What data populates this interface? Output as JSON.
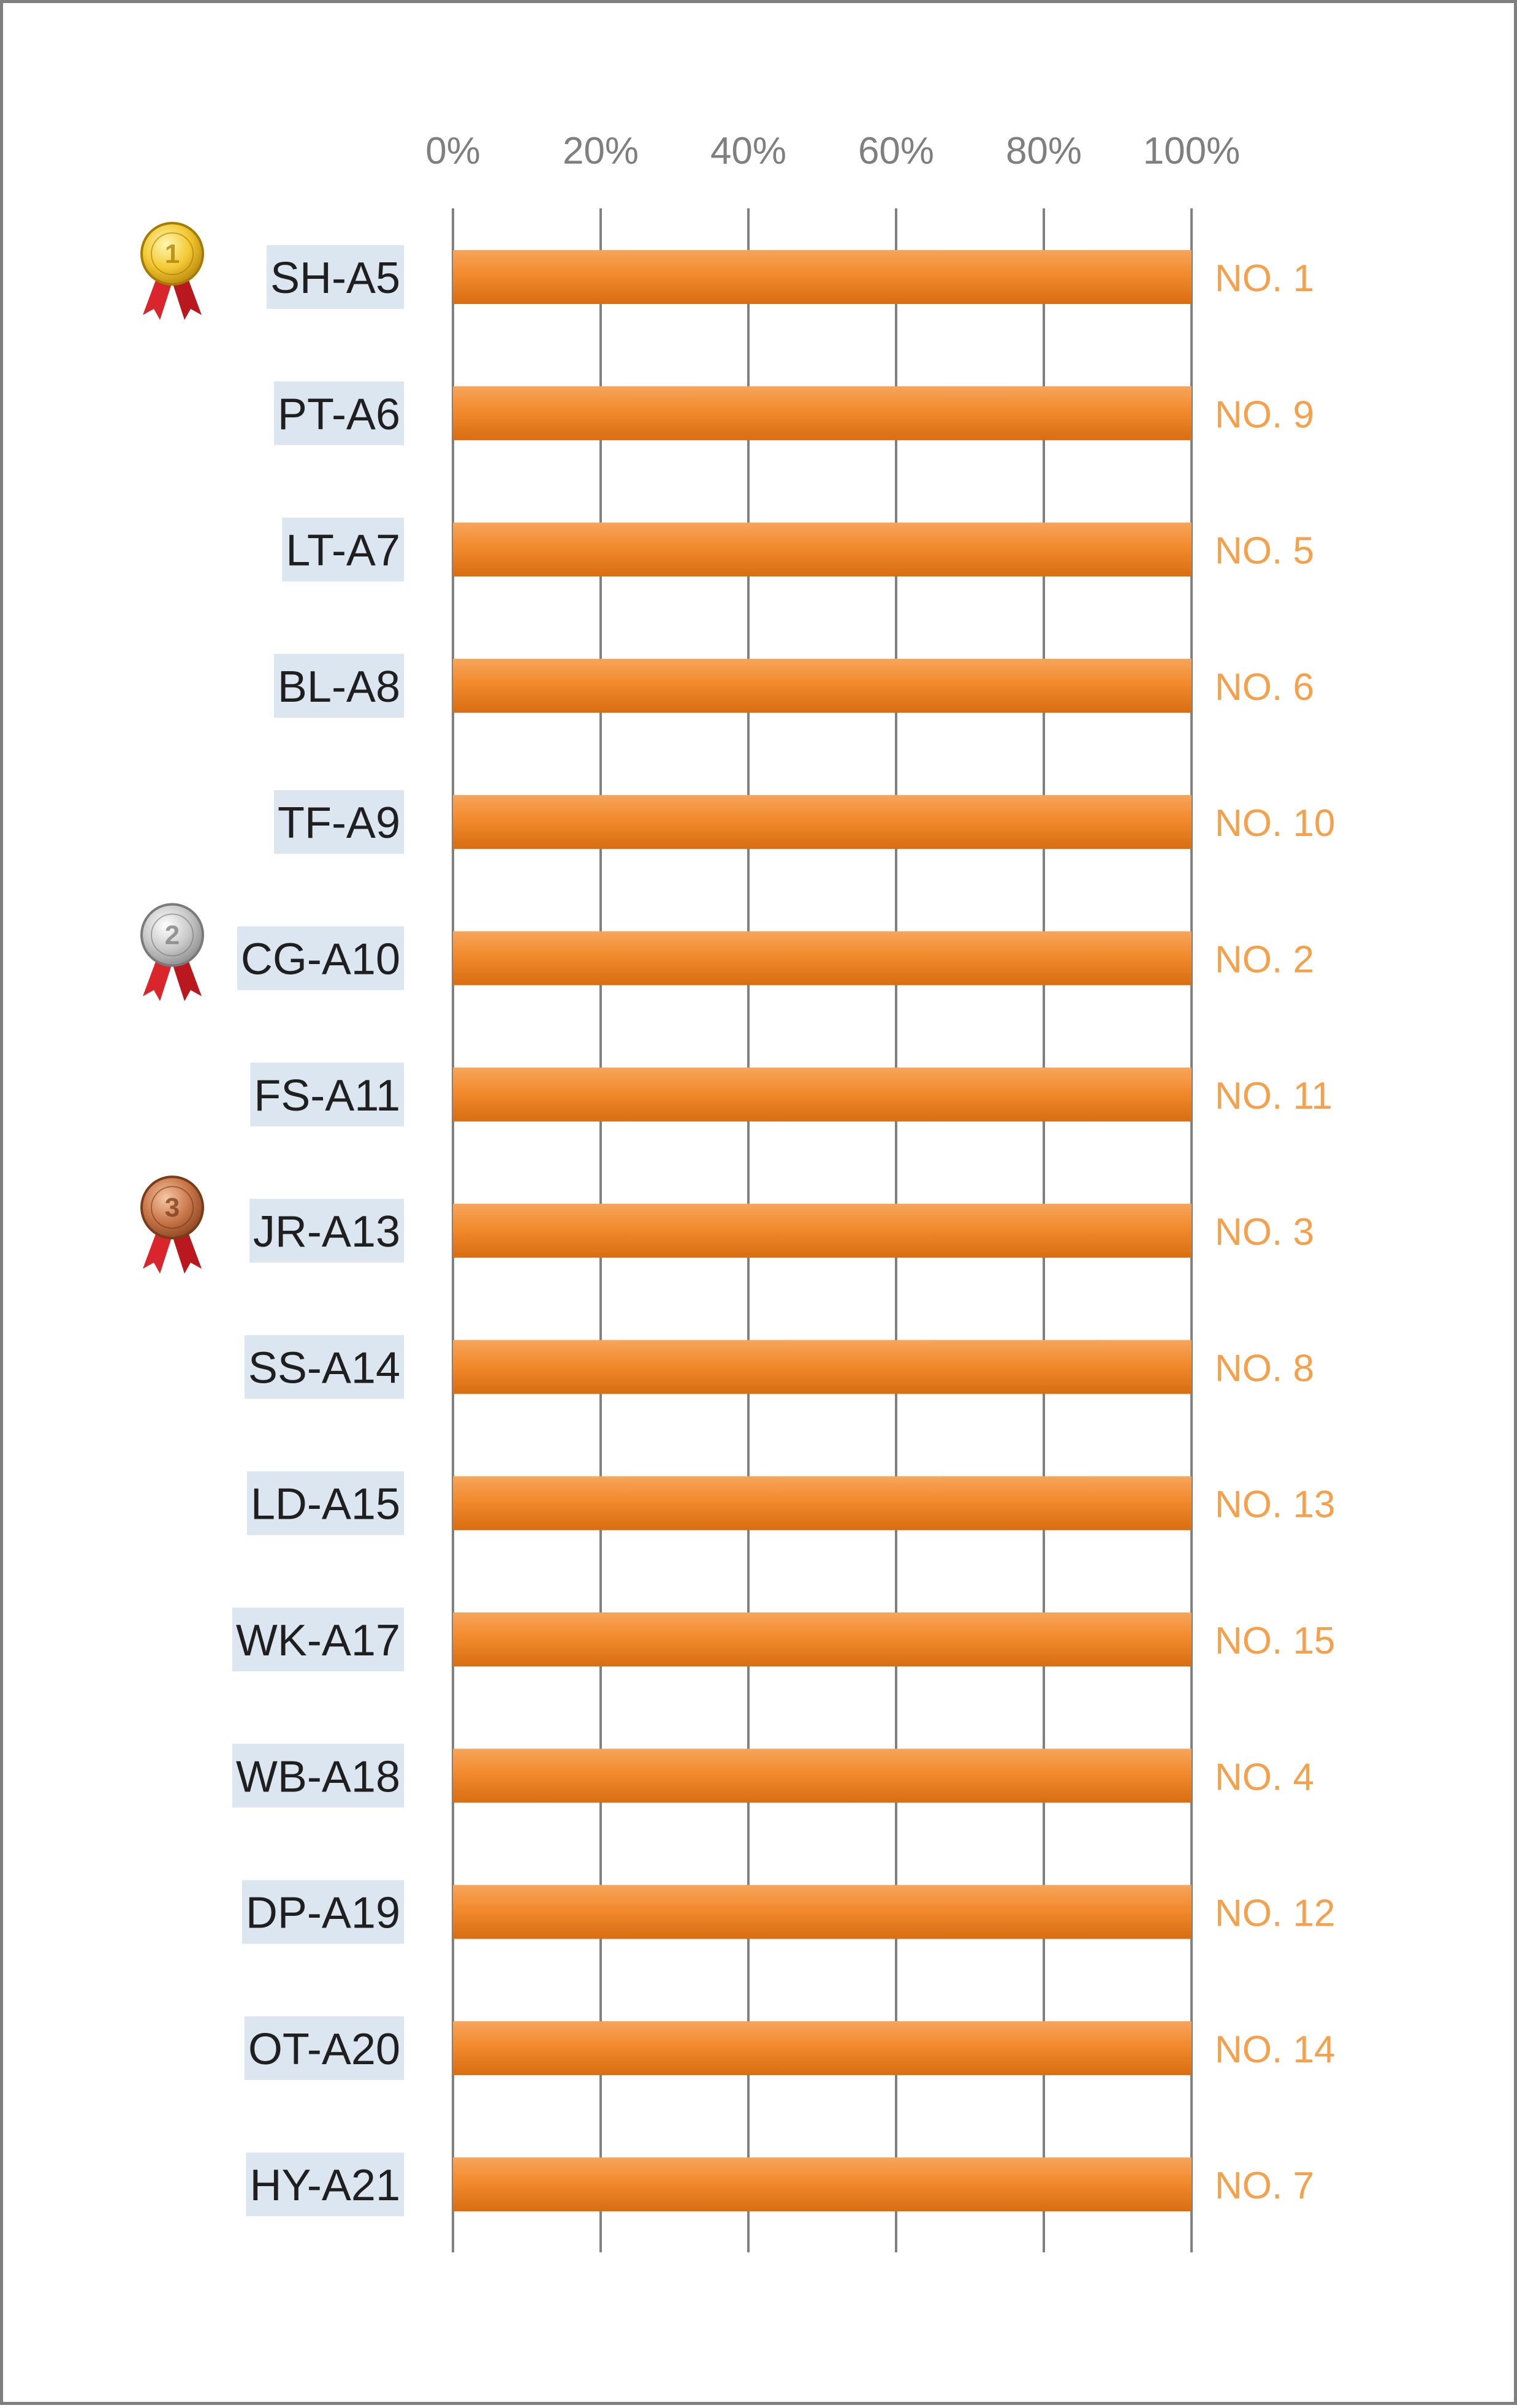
{
  "chart_data": {
    "type": "bar",
    "orientation": "horizontal",
    "categories": [
      "SH-A5",
      "PT-A6",
      "LT-A7",
      "BL-A8",
      "TF-A9",
      "CG-A10",
      "FS-A11",
      "JR-A13",
      "SS-A14",
      "LD-A15",
      "WK-A17",
      "WB-A18",
      "DP-A19",
      "OT-A20",
      "HY-A21"
    ],
    "values": [
      100,
      100,
      100,
      100,
      100,
      100,
      100,
      100,
      100,
      100,
      100,
      100,
      100,
      100,
      100
    ],
    "data_labels": [
      "NO. 1",
      "NO. 9",
      "NO. 5",
      "NO. 6",
      "NO. 10",
      "NO. 2",
      "NO. 11",
      "NO. 3",
      "NO. 8",
      "NO. 13",
      "NO. 15",
      "NO. 4",
      "NO. 12",
      "NO. 14",
      "NO. 7"
    ],
    "medals": [
      {
        "category": "SH-A5",
        "rank": "1",
        "icon": "gold-medal-icon"
      },
      {
        "category": "CG-A10",
        "rank": "2",
        "icon": "silver-medal-icon"
      },
      {
        "category": "JR-A13",
        "rank": "3",
        "icon": "bronze-medal-icon"
      }
    ],
    "x_ticks": [
      "0%",
      "20%",
      "40%",
      "60%",
      "80%",
      "100%"
    ],
    "xlim": [
      0,
      100
    ],
    "grid": "vertical",
    "x_axis_position": "top",
    "title": "",
    "xlabel": "",
    "ylabel": "",
    "colors": {
      "bar": "#f28a2e",
      "bar_light": "#f6a55b",
      "bar_dark": "#d86d12",
      "data_label": "#f5a04a",
      "category_label_bg": "#dce6f1",
      "category_label_text": "#1f1f1f",
      "tick_label": "#7f7f7f",
      "grid": "#808080",
      "frame": "#7f7f7f"
    }
  }
}
